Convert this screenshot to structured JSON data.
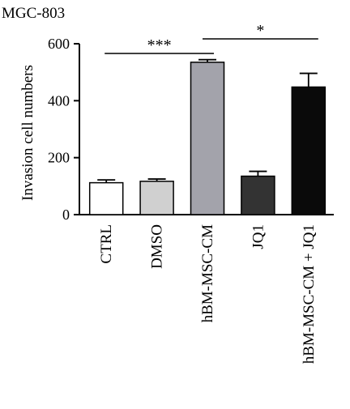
{
  "chart_data": {
    "type": "bar",
    "title": "MGC-803",
    "xlabel": "",
    "ylabel": "Invasion cell numbers",
    "ylim": [
      0,
      600
    ],
    "yticks": [
      0,
      200,
      400,
      600
    ],
    "grid": false,
    "legend": "none",
    "categories": [
      "CTRL",
      "DMSO",
      "hBM-MSC-CM",
      "JQ1",
      "hBM-MSC-CM + JQ1"
    ],
    "values": [
      112,
      117,
      535,
      135,
      448
    ],
    "errors": [
      10,
      8,
      9,
      17,
      48
    ],
    "bar_colors": [
      "#ffffff",
      "#d0d0d0",
      "#a3a3ab",
      "#333333",
      "#0a0a0a"
    ],
    "significance": [
      {
        "from": 0,
        "to": 2,
        "label": "***"
      },
      {
        "from": 2,
        "to": 4,
        "label": "*"
      }
    ]
  }
}
